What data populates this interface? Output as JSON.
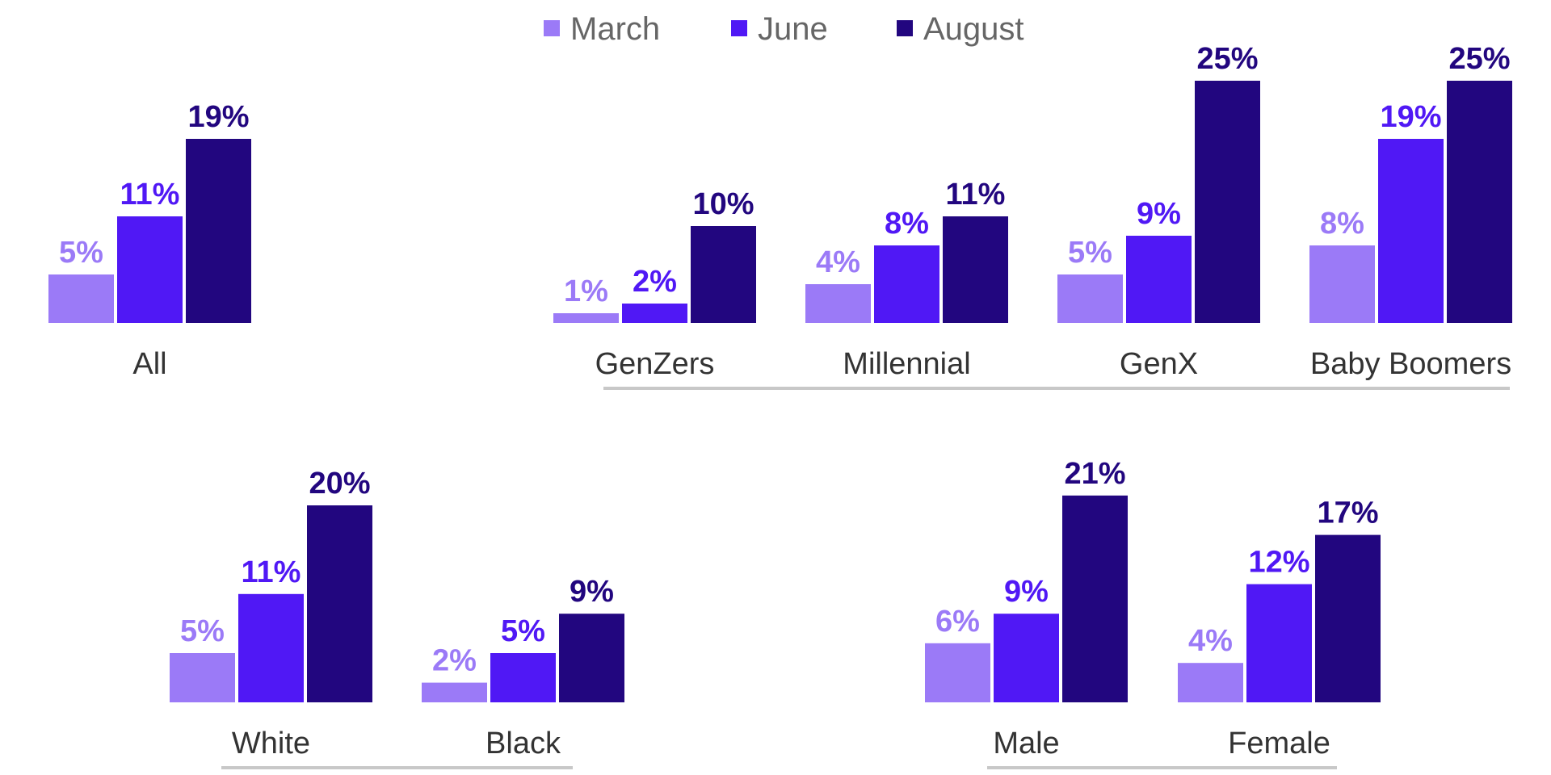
{
  "chart_data": [
    {
      "type": "bar",
      "categories": [
        "All"
      ],
      "series": [
        {
          "name": "March",
          "values": [
            5
          ]
        },
        {
          "name": "June",
          "values": [
            11
          ]
        },
        {
          "name": "August",
          "values": [
            19
          ]
        }
      ]
    },
    {
      "type": "bar",
      "categories": [
        "GenZers",
        "Millennial",
        "GenX",
        "Baby Boomers"
      ],
      "series": [
        {
          "name": "March",
          "values": [
            1,
            4,
            5,
            8
          ]
        },
        {
          "name": "June",
          "values": [
            2,
            8,
            9,
            19
          ]
        },
        {
          "name": "August",
          "values": [
            10,
            11,
            25,
            25
          ]
        }
      ]
    },
    {
      "type": "bar",
      "categories": [
        "White",
        "Black"
      ],
      "series": [
        {
          "name": "March",
          "values": [
            5,
            2
          ]
        },
        {
          "name": "June",
          "values": [
            11,
            5
          ]
        },
        {
          "name": "August",
          "values": [
            20,
            9
          ]
        }
      ]
    },
    {
      "type": "bar",
      "categories": [
        "Male",
        "Female"
      ],
      "series": [
        {
          "name": "March",
          "values": [
            6,
            4
          ]
        },
        {
          "name": "June",
          "values": [
            9,
            12
          ]
        },
        {
          "name": "August",
          "values": [
            21,
            17
          ]
        }
      ]
    }
  ],
  "legend": [
    {
      "name": "March",
      "color": "#9b7af7"
    },
    {
      "name": "June",
      "color": "#5018f5"
    },
    {
      "name": "August",
      "color": "#22067f"
    }
  ],
  "value_suffix": "%",
  "colors": {
    "label_text": "#333333",
    "legend_text": "#666666",
    "group_underline": "#c8c8c8"
  }
}
